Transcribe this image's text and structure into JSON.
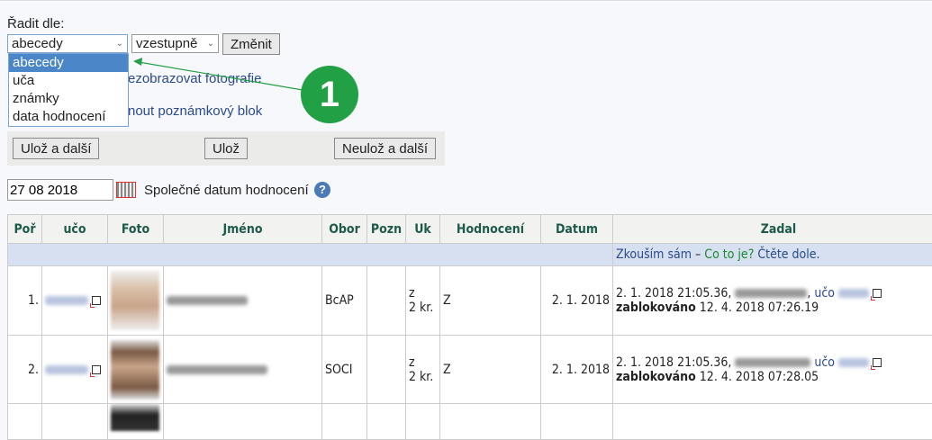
{
  "sort": {
    "label": "Řadit dle:",
    "field_value": "abecedy",
    "order_value": "vzestupně",
    "change_button": "Změnit",
    "options": [
      "abecedy",
      "uča",
      "známky",
      "data hodnocení"
    ]
  },
  "links": {
    "hide_photos": "Nezobrazovat fotografie",
    "notebook": "Připnout poznámkový blok"
  },
  "links_visible": {
    "hide_photos": "ezobrazovat fotografie",
    "notebook": "nout poznámkový blok"
  },
  "buttons": {
    "save_next": "Ulož a další",
    "save": "Ulož",
    "nosave_next": "Neulož a další"
  },
  "date": {
    "value": "27 08 2018",
    "label": "Společné datum hodnocení"
  },
  "callout": {
    "number": "1",
    "color": "#22a045"
  },
  "table": {
    "headers": [
      "Poř",
      "učo",
      "Foto",
      "Jméno",
      "Obor",
      "Pozn",
      "Uk",
      "Hodnocení",
      "Datum",
      "Zadal"
    ],
    "info": {
      "a": "Zkouším sám",
      "dash": " – ",
      "b": "Co to je?",
      "c": " Čtěte dole."
    },
    "rows": [
      {
        "n": "1.",
        "obor": "BcAP",
        "uk1": "z",
        "uk2": "2 kr.",
        "hod": "Z",
        "datum": "2. 1. 2018",
        "zadal_ts": "2. 1. 2018 21:05.36,",
        "uco_label": "učo",
        "blocked": "zablokováno",
        "blocked_ts": "12. 4. 2018 07:26.19"
      },
      {
        "n": "2.",
        "obor": "SOCI",
        "uk1": "z",
        "uk2": "2 kr.",
        "hod": "Z",
        "datum": "2. 1. 2018",
        "zadal_ts": "2. 1. 2018 21:05.36,",
        "uco_label": "učo",
        "blocked": "zablokováno",
        "blocked_ts": "12. 4. 2018 07:28.05"
      }
    ]
  }
}
